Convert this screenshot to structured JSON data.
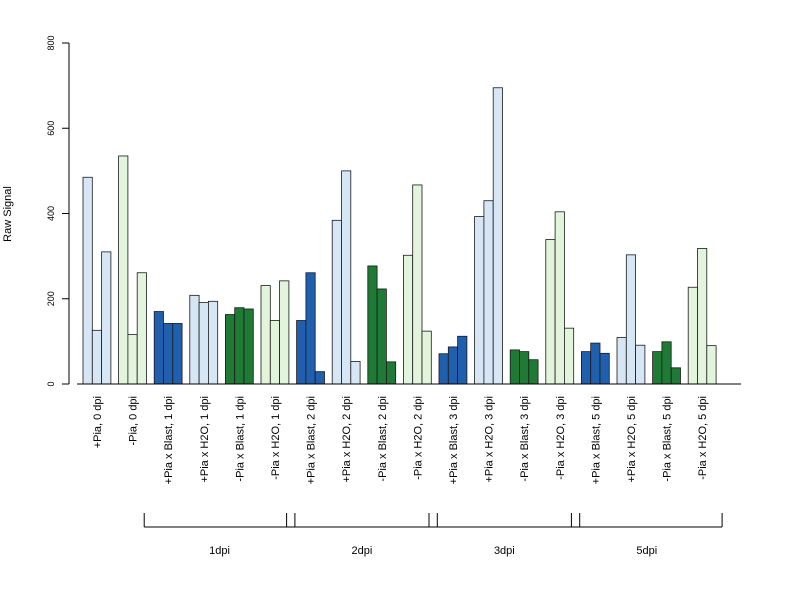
{
  "colors": {
    "plus_blast": "#1f5fae",
    "plus_h2o": "#d6e6f5",
    "minus_blast": "#1e7a35",
    "minus_h2o": "#e2f4dc",
    "outline": "#1a1a1a"
  },
  "chart_data": {
    "type": "bar",
    "title": "",
    "xlabel": "",
    "ylabel": "Raw Signal",
    "ylim": [
      0,
      800
    ],
    "yticks": [
      "0",
      "200",
      "400",
      "600",
      "800"
    ],
    "grid": false,
    "categories": [
      {
        "label": "+Pia, 0 dpi",
        "color_key": "plus_h2o",
        "values": [
          485,
          126,
          310
        ]
      },
      {
        "label": "-Pia, 0 dpi",
        "color_key": "minus_h2o",
        "values": [
          535,
          116,
          261
        ]
      },
      {
        "label": "+Pia x Blast, 1 dpi",
        "color_key": "plus_blast",
        "values": [
          170,
          142,
          142
        ]
      },
      {
        "label": "+Pia x H2O, 1 dpi",
        "color_key": "plus_h2o",
        "values": [
          208,
          191,
          194
        ]
      },
      {
        "label": "-Pia x Blast, 1 dpi",
        "color_key": "minus_blast",
        "values": [
          163,
          179,
          176
        ]
      },
      {
        "label": "-Pia x H2O, 1 dpi",
        "color_key": "minus_h2o",
        "values": [
          231,
          149,
          242
        ]
      },
      {
        "label": "+Pia x Blast, 2 dpi",
        "color_key": "plus_blast",
        "values": [
          149,
          261,
          29
        ]
      },
      {
        "label": "+Pia x H2O, 2 dpi",
        "color_key": "plus_h2o",
        "values": [
          384,
          500,
          53
        ]
      },
      {
        "label": "-Pia x Blast, 2 dpi",
        "color_key": "minus_blast",
        "values": [
          277,
          223,
          52
        ]
      },
      {
        "label": "-Pia x H2O, 2 dpi",
        "color_key": "minus_h2o",
        "values": [
          302,
          467,
          124
        ]
      },
      {
        "label": "+Pia x Blast, 3 dpi",
        "color_key": "plus_blast",
        "values": [
          71,
          87,
          112
        ]
      },
      {
        "label": "+Pia x H2O, 3 dpi",
        "color_key": "plus_h2o",
        "values": [
          393,
          430,
          695
        ]
      },
      {
        "label": "-Pia x Blast, 3 dpi",
        "color_key": "minus_blast",
        "values": [
          80,
          76,
          57
        ]
      },
      {
        "label": "-Pia x H2O, 3 dpi",
        "color_key": "minus_h2o",
        "values": [
          339,
          404,
          131
        ]
      },
      {
        "label": "+Pia x Blast, 5 dpi",
        "color_key": "plus_blast",
        "values": [
          76,
          96,
          72
        ]
      },
      {
        "label": "+Pia x H2O, 5 dpi",
        "color_key": "plus_h2o",
        "values": [
          109,
          303,
          91
        ]
      },
      {
        "label": "-Pia x Blast, 5 dpi",
        "color_key": "minus_blast",
        "values": [
          76,
          99,
          38
        ]
      },
      {
        "label": "-Pia x H2O, 5 dpi",
        "color_key": "minus_h2o",
        "values": [
          227,
          318,
          90
        ]
      }
    ],
    "groups": [
      {
        "label": "1dpi",
        "first": 2,
        "last": 5
      },
      {
        "label": "2dpi",
        "first": 6,
        "last": 9
      },
      {
        "label": "3dpi",
        "first": 10,
        "last": 13
      },
      {
        "label": "5dpi",
        "first": 14,
        "last": 17
      }
    ]
  }
}
